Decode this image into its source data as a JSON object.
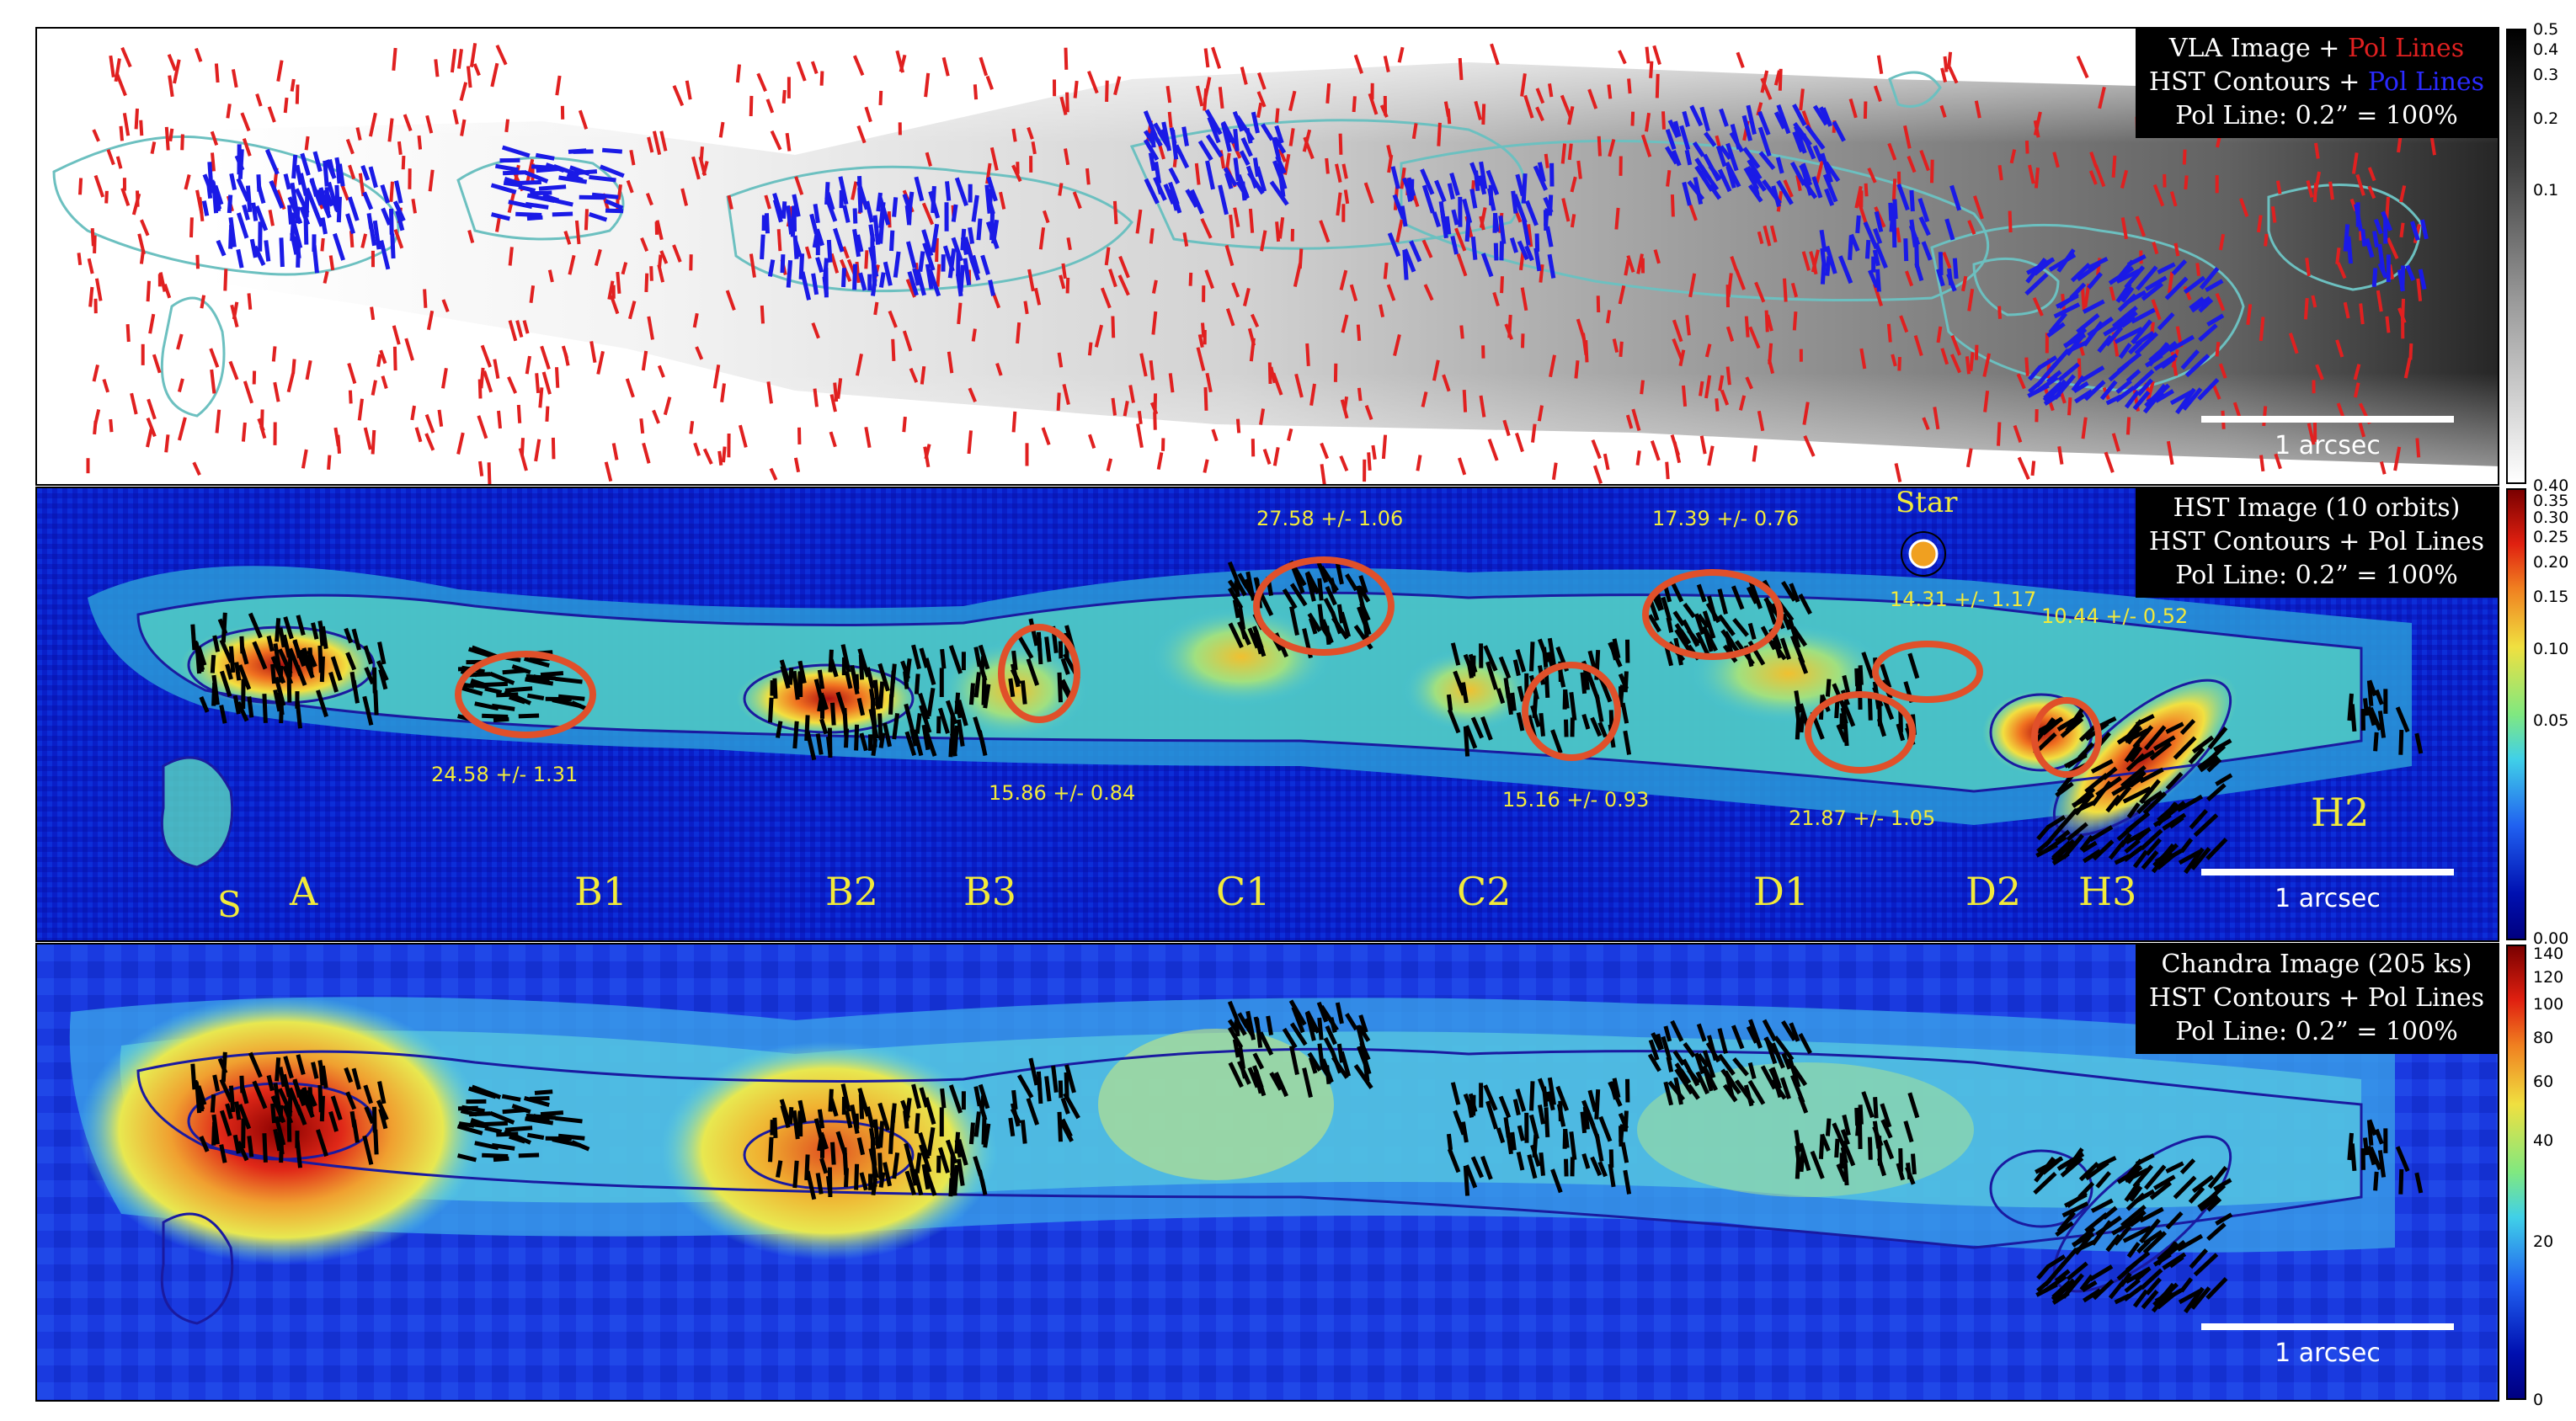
{
  "panels": {
    "vla": {
      "line1_a": "VLA Image + ",
      "line1_b": "Pol Lines",
      "line2_a": "HST Contours + ",
      "line2_b": "Pol Lines",
      "line3": "Pol Line: 0.2” = 100%",
      "scale": "1 arcsec"
    },
    "hst": {
      "line1": "HST Image (10 orbits)",
      "line2": "HST Contours + Pol Lines",
      "line3": "Pol Line: 0.2” = 100%",
      "scale": "1 arcsec",
      "star_label": "Star",
      "knots": [
        "S",
        "A",
        "B1",
        "B2",
        "B3",
        "C1",
        "C2",
        "D1",
        "D2",
        "H3",
        "H2"
      ],
      "pol_values": [
        "27.58 +/- 1.06",
        "17.39 +/- 0.76",
        "14.31 +/- 1.17",
        "10.44 +/- 0.52",
        "24.58 +/- 1.31",
        "15.86 +/- 0.84",
        "15.16 +/- 0.93",
        "21.87 +/- 1.05"
      ]
    },
    "chandra": {
      "line1": "Chandra Image (205 ks)",
      "line2": "HST Contours + Pol Lines",
      "line3": "Pol Line: 0.2” = 100%",
      "scale": "1 arcsec"
    }
  },
  "colorbars": {
    "vla": [
      "0.5",
      "0.4",
      "0.3",
      "0.2",
      "0.1"
    ],
    "hst": [
      "0.40",
      "0.35",
      "0.30",
      "0.25",
      "0.20",
      "0.15",
      "0.10",
      "0.05",
      "0.00"
    ],
    "chandra": [
      "140",
      "120",
      "100",
      "80",
      "60",
      "40",
      "20",
      "0"
    ]
  },
  "colors": {
    "vla_pol": "#e02020",
    "hst_pol": "#1a1ae6",
    "contour_cyan": "#6cc0c0",
    "contour_blue": "#1a1aa0",
    "knot_label": "#f2ea3a",
    "ellipse": "#e0502a"
  }
}
